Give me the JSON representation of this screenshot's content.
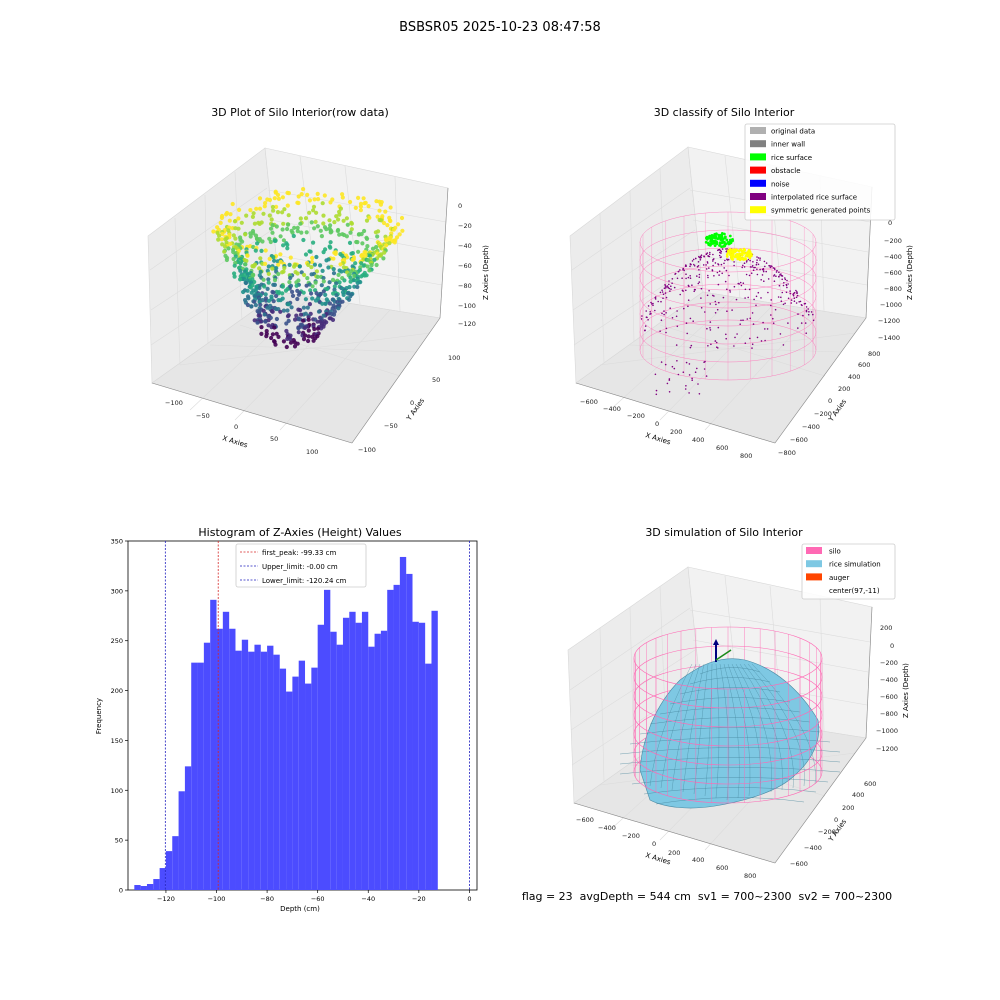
{
  "suptitle": "BSBSR05 2025-10-23 08:47:58",
  "colors": {
    "histogram_bar": "#4c4cff",
    "first_peak": "#d62728",
    "limit_line": "#1f1fbf",
    "silo_wire": "#ff69b4",
    "rice_sim": "#7ec8e3",
    "auger": "#ff4500"
  },
  "chart_data": [
    {
      "type": "scatter",
      "projection": "3d",
      "title": "3D Plot of Silo Interior(row data)",
      "xlabel": "X Axies",
      "ylabel": "Y Axies",
      "zlabel": "Z Axies (Depth)",
      "x_ticks": [
        "−100",
        "−50",
        "0",
        "50",
        "100"
      ],
      "y_ticks": [
        "−100",
        "−50",
        "0",
        "50",
        "100"
      ],
      "z_ticks": [
        "0",
        "−20",
        "−40",
        "−60",
        "−80",
        "−100",
        "−120"
      ],
      "xlim": [
        -120,
        120
      ],
      "ylim": [
        -120,
        120
      ],
      "zlim": [
        -135,
        5
      ],
      "colormap": "viridis",
      "grid": true
    },
    {
      "type": "scatter",
      "projection": "3d",
      "title": "3D classify of Silo Interior",
      "xlabel": "X Axies",
      "ylabel": "Y Axies",
      "zlabel": "Z Axies (Depth)",
      "x_ticks": [
        "−600",
        "−400",
        "−200",
        "0",
        "200",
        "400",
        "600",
        "800"
      ],
      "y_ticks": [
        "−800",
        "−600",
        "−400",
        "−200",
        "0",
        "200",
        "400",
        "600",
        "800"
      ],
      "z_ticks": [
        "0",
        "−200",
        "−400",
        "−600",
        "−800",
        "−1000",
        "−1200",
        "−1400"
      ],
      "legend_position": "top-right",
      "legend": [
        {
          "label": "original data",
          "color": "#b0b0b0"
        },
        {
          "label": "inner wall",
          "color": "#808080"
        },
        {
          "label": "rice surface",
          "color": "#00ff00"
        },
        {
          "label": "obstacle",
          "color": "#ff0000"
        },
        {
          "label": "noise",
          "color": "#0000ff"
        },
        {
          "label": "interpolated rice surface",
          "color": "#800080"
        },
        {
          "label": "symmetric generated points",
          "color": "#ffff00"
        }
      ],
      "grid": true
    },
    {
      "type": "bar",
      "title": "Histogram of Z-Axies (Height) Values",
      "xlabel": "Depth (cm)",
      "ylabel": "Frequency",
      "xlim": [
        -135,
        3
      ],
      "ylim": [
        0,
        350
      ],
      "x_ticks": [
        -120,
        -100,
        -80,
        -60,
        -40,
        -20,
        0
      ],
      "y_ticks": [
        0,
        50,
        100,
        150,
        200,
        250,
        300,
        350
      ],
      "bin_edges_start": -132.5,
      "bin_width": 2.5,
      "values": [
        5,
        4,
        6,
        11,
        22,
        39,
        54,
        99,
        124,
        228,
        228,
        248,
        291,
        262,
        279,
        262,
        240,
        251,
        239,
        246,
        239,
        245,
        236,
        222,
        199,
        214,
        230,
        207,
        223,
        266,
        301,
        259,
        246,
        273,
        279,
        268,
        279,
        244,
        257,
        260,
        301,
        306,
        334,
        317,
        269,
        268,
        227,
        280
      ],
      "vlines": [
        {
          "x": -99.33,
          "label": "first_peak: -99.33 cm",
          "color": "#d62728"
        },
        {
          "x": -0.0,
          "label": "Upper_limit: -0.00 cm",
          "color": "#1f1fbf"
        },
        {
          "x": -120.24,
          "label": "Lower_limit: -120.24 cm",
          "color": "#1f1fbf"
        }
      ],
      "legend_position": "top-center"
    },
    {
      "type": "surface",
      "projection": "3d",
      "title": "3D simulation of Silo Interior",
      "xlabel": "X Axies",
      "ylabel": "Y Axies",
      "zlabel": "Z Axies (Depth)",
      "x_ticks": [
        "−600",
        "−400",
        "−200",
        "0",
        "200",
        "400",
        "600",
        "800"
      ],
      "y_ticks": [
        "−600",
        "−400",
        "−200",
        "0",
        "200",
        "400",
        "600"
      ],
      "z_ticks": [
        "200",
        "0",
        "−200",
        "−400",
        "−600",
        "−800",
        "−1000",
        "−1200"
      ],
      "legend_position": "top-right",
      "legend": [
        {
          "label": "silo",
          "color": "#ff69b4"
        },
        {
          "label": "rice simulation",
          "color": "#7ec8e3"
        },
        {
          "label": "auger",
          "color": "#ff4500"
        },
        {
          "label": "center(97,-11)",
          "color": "#ffffff"
        }
      ],
      "grid": true
    }
  ],
  "footer": "flag = 23  avgDepth = 544 cm  sv1 = 700~2300  sv2 = 700~2300"
}
